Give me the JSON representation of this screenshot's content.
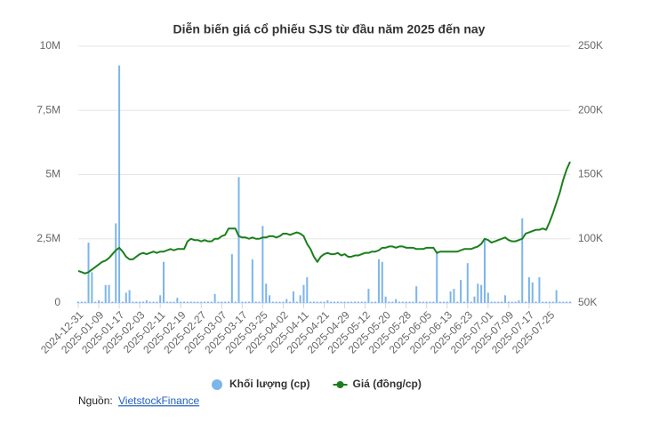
{
  "chart_data": {
    "type": "combo",
    "title": "Diễn biến giá cổ phiếu SJS từ đầu năm 2025 đến nay",
    "categories": [
      "2024-12-31",
      null,
      null,
      null,
      null,
      null,
      "2025-01-09",
      null,
      null,
      null,
      null,
      null,
      "2025-01-17",
      null,
      null,
      null,
      null,
      null,
      "2025-02-03",
      null,
      null,
      null,
      null,
      null,
      "2025-02-11",
      null,
      null,
      null,
      null,
      null,
      "2025-02-19",
      null,
      null,
      null,
      null,
      null,
      "2025-02-27",
      null,
      null,
      null,
      null,
      null,
      "2025-03-07",
      null,
      null,
      null,
      null,
      null,
      "2025-03-17",
      null,
      null,
      null,
      null,
      null,
      "2025-03-25",
      null,
      null,
      null,
      null,
      null,
      "2025-04-02",
      null,
      null,
      null,
      null,
      null,
      "2025-04-11",
      null,
      null,
      null,
      null,
      null,
      "2025-04-21",
      null,
      null,
      null,
      null,
      null,
      "2025-04-29",
      null,
      null,
      null,
      null,
      null,
      "2025-05-12",
      null,
      null,
      null,
      null,
      null,
      "2025-05-20",
      null,
      null,
      null,
      null,
      null,
      "2025-05-28",
      null,
      null,
      null,
      null,
      null,
      "2025-06-05",
      null,
      null,
      null,
      null,
      null,
      "2025-06-13",
      null,
      null,
      null,
      null,
      null,
      "2025-06-23",
      null,
      null,
      null,
      null,
      null,
      "2025-07-01",
      null,
      null,
      null,
      null,
      null,
      "2025-07-09",
      null,
      null,
      null,
      null,
      null,
      "2025-07-17",
      null,
      null,
      null,
      null,
      null,
      "2025-07-25",
      null,
      null,
      null,
      null,
      null,
      null
    ],
    "series": [
      {
        "name": "Khối lượng (cp)",
        "type": "bar",
        "color": "#7cb5ec",
        "values": [
          50000,
          50000,
          50000,
          2350000,
          1200000,
          50000,
          100000,
          50000,
          700000,
          700000,
          50000,
          3100000,
          9250000,
          50000,
          400000,
          500000,
          50000,
          50000,
          50000,
          50000,
          100000,
          50000,
          50000,
          50000,
          300000,
          1600000,
          50000,
          50000,
          50000,
          200000,
          50000,
          50000,
          50000,
          50000,
          50000,
          50000,
          50000,
          50000,
          50000,
          50000,
          350000,
          50000,
          50000,
          50000,
          50000,
          1900000,
          50000,
          4900000,
          50000,
          50000,
          50000,
          1700000,
          50000,
          50000,
          3000000,
          750000,
          300000,
          50000,
          50000,
          50000,
          50000,
          150000,
          50000,
          450000,
          50000,
          300000,
          700000,
          1000000,
          50000,
          50000,
          50000,
          50000,
          50000,
          100000,
          50000,
          50000,
          50000,
          50000,
          50000,
          50000,
          50000,
          50000,
          50000,
          50000,
          50000,
          550000,
          50000,
          50000,
          1700000,
          1600000,
          250000,
          50000,
          50000,
          150000,
          50000,
          50000,
          50000,
          50000,
          50000,
          650000,
          50000,
          50000,
          50000,
          50000,
          50000,
          2000000,
          50000,
          50000,
          50000,
          450000,
          550000,
          50000,
          900000,
          50000,
          1550000,
          50000,
          250000,
          750000,
          700000,
          2500000,
          400000,
          50000,
          50000,
          50000,
          50000,
          300000,
          50000,
          50000,
          50000,
          100000,
          3300000,
          50000,
          1000000,
          800000,
          50000,
          1000000,
          50000,
          50000,
          50000,
          50000,
          500000,
          50000,
          50000,
          50000,
          50000
        ]
      },
      {
        "name": "Giá (đồng/cp)",
        "type": "line",
        "axis": "y2",
        "color": "#1a7f1a",
        "values": [
          75000,
          74000,
          73000,
          74000,
          76000,
          78000,
          80000,
          82000,
          83000,
          85000,
          88000,
          91000,
          93000,
          90000,
          86000,
          84000,
          84000,
          86000,
          88000,
          89000,
          88000,
          89000,
          90000,
          89000,
          90000,
          90000,
          91000,
          92000,
          91000,
          92000,
          92000,
          92000,
          98000,
          100000,
          99000,
          99000,
          98000,
          99000,
          98000,
          98000,
          100000,
          100000,
          102000,
          103000,
          108000,
          108000,
          108000,
          102000,
          101000,
          101000,
          100000,
          101000,
          100000,
          100000,
          101000,
          101000,
          102000,
          102000,
          101000,
          102000,
          104000,
          104000,
          103000,
          104000,
          105000,
          104000,
          102000,
          96000,
          92000,
          86000,
          82000,
          86000,
          88000,
          89000,
          88000,
          88000,
          89000,
          87000,
          88000,
          86000,
          86000,
          87000,
          87000,
          88000,
          89000,
          89000,
          90000,
          90000,
          91000,
          93000,
          93000,
          94000,
          94000,
          93000,
          94000,
          94000,
          93000,
          93000,
          93000,
          92000,
          92000,
          92000,
          93000,
          93000,
          93000,
          89000,
          90000,
          90000,
          90000,
          90000,
          90000,
          90000,
          91000,
          92000,
          92000,
          92000,
          93000,
          94000,
          96000,
          100000,
          99000,
          97000,
          98000,
          99000,
          100000,
          101000,
          99000,
          98000,
          98000,
          99000,
          100000,
          104000,
          105000,
          106000,
          107000,
          107000,
          108000,
          107000,
          113000,
          120000,
          128000,
          136000,
          146000,
          154000,
          160000
        ]
      }
    ],
    "ylim": [
      0,
      10000000
    ],
    "yticks": [
      0,
      {
        "value": 2500000,
        "label": "2,5M"
      },
      {
        "value": 5000000,
        "label": "5M"
      },
      {
        "value": 7500000,
        "label": "7,5M"
      },
      {
        "value": 10000000,
        "label": "10M"
      }
    ],
    "y2lim": [
      50000,
      250000
    ],
    "y2ticks": [
      {
        "value": 50000,
        "label": "50K"
      },
      {
        "value": 100000,
        "label": "100K"
      },
      {
        "value": 150000,
        "label": "150K"
      },
      {
        "value": 200000,
        "label": "200K"
      },
      {
        "value": 250000,
        "label": "250K"
      }
    ],
    "grid": true,
    "source_label": "Nguồn:",
    "source": "VietstockFinance"
  }
}
